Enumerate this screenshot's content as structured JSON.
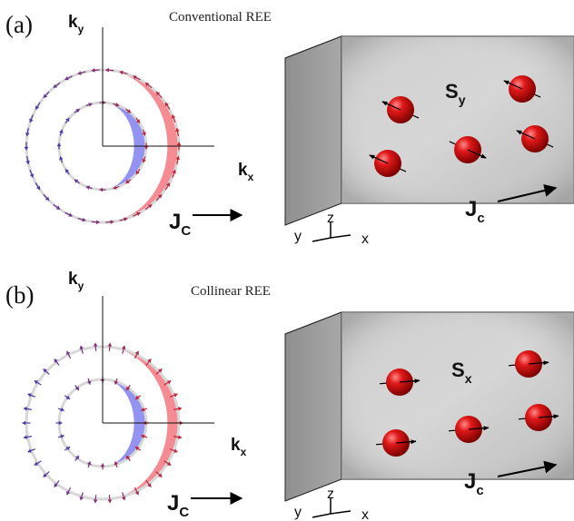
{
  "panels": [
    {
      "id": "a",
      "label": "(a)",
      "title": "Conventional REE",
      "k_axes": {
        "y_main": "k",
        "y_sub": "y",
        "x_main": "k",
        "x_sub": "x"
      },
      "current": {
        "main": "J",
        "sub": "C"
      },
      "box_current": {
        "main": "J",
        "sub": "c"
      },
      "spin": {
        "main": "S",
        "sub": "y"
      },
      "coords": {
        "z": "z",
        "y": "y",
        "x": "x"
      },
      "texture": "tangential",
      "colors": {
        "outer_shade": "#f26f78",
        "inner_shade": "#8080ee",
        "arrow_red": "#c8202e",
        "arrow_blue": "#4a3aa8"
      }
    },
    {
      "id": "b",
      "label": "(b)",
      "title": "Collinear REE",
      "k_axes": {
        "y_main": "k",
        "y_sub": "y",
        "x_main": "k",
        "x_sub": "x"
      },
      "current": {
        "main": "J",
        "sub": "C"
      },
      "box_current": {
        "main": "J",
        "sub": "c"
      },
      "spin": {
        "main": "S",
        "sub": "x"
      },
      "coords": {
        "z": "z",
        "y": "y",
        "x": "x"
      },
      "texture": "radial",
      "colors": {
        "outer_shade": "#f26f78",
        "inner_shade": "#8080ee",
        "arrow_red": "#c8202e",
        "arrow_blue": "#4a3aa8"
      }
    }
  ]
}
